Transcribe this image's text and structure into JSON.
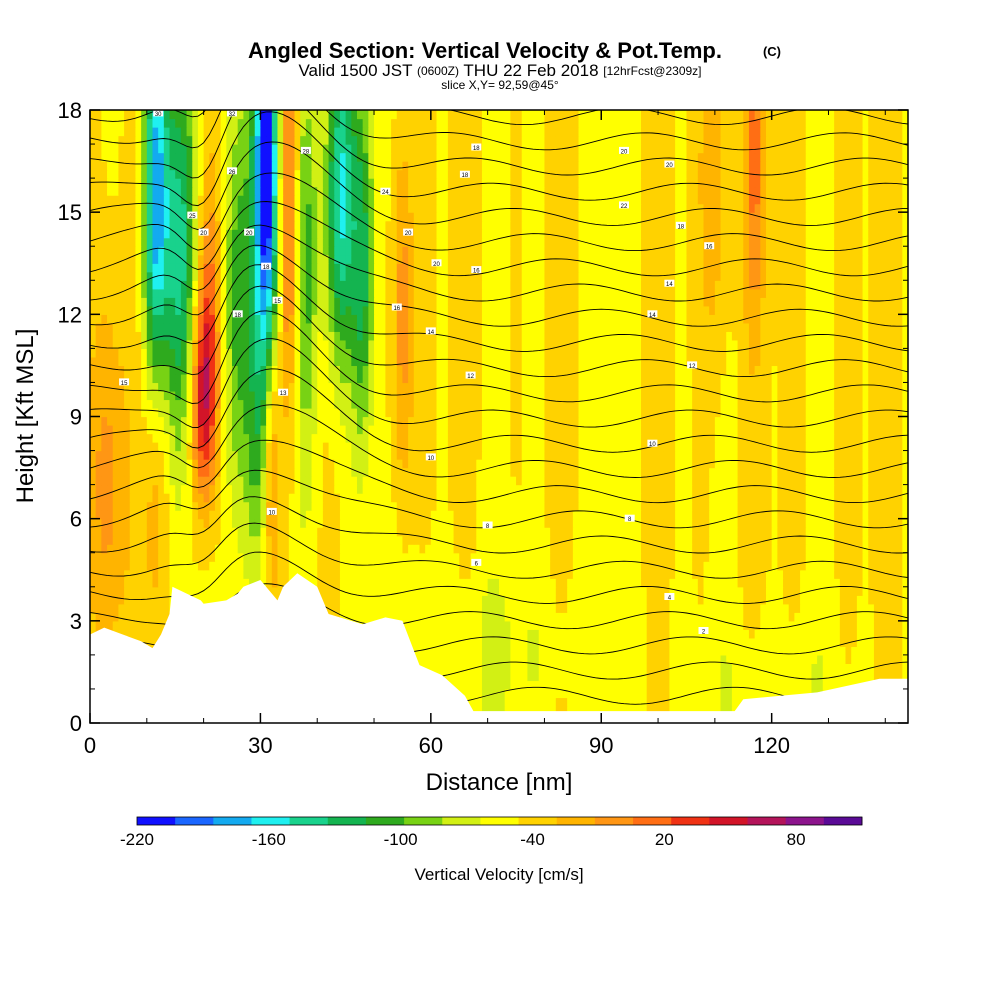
{
  "header": {
    "title_main": "Angled Section: Vertical Velocity & Pot.Temp.",
    "title_unit": "(C)",
    "valid_a": "Valid 1500 JST",
    "valid_utc": "(0600Z)",
    "valid_b": "THU 22 Feb 2018",
    "fcst": "[12hrFcst@2309z]",
    "slice": "slice X,Y= 92,59@45°"
  },
  "chart_data": {
    "type": "heatmap",
    "xlabel": "Distance [nm]",
    "ylabel": "Height [Kft MSL]",
    "xlim": [
      0,
      144
    ],
    "ylim": [
      0,
      18
    ],
    "x_ticks": [
      "0",
      "30",
      "60",
      "90",
      "120"
    ],
    "x_tick_values": [
      0,
      30,
      60,
      90,
      120
    ],
    "y_ticks": [
      "0",
      "3",
      "6",
      "9",
      "12",
      "15",
      "18"
    ],
    "y_tick_values": [
      0,
      3,
      6,
      9,
      12,
      15,
      18
    ],
    "grid": false,
    "colorbar": {
      "label": "Vertical Velocity [cm/s]",
      "range": [
        -220,
        110
      ],
      "step": 20,
      "tick_labels": [
        "-220",
        "-160",
        "-100",
        "-40",
        "20",
        "80"
      ],
      "tick_values": [
        -220,
        -160,
        -100,
        -40,
        20,
        80
      ],
      "colors": [
        "#1010ff",
        "#1a66ff",
        "#13aaf0",
        "#1ff0f0",
        "#19d28c",
        "#14b450",
        "#2eaa1e",
        "#78d214",
        "#d2f014",
        "#ffff00",
        "#ffd200",
        "#ffb400",
        "#ff9614",
        "#ff6e14",
        "#f03214",
        "#d21428",
        "#b4145a",
        "#8c148c",
        "#5a0a96"
      ]
    },
    "velocity_background_cm_s": -20,
    "velocity_features": [
      {
        "x": 3,
        "y": 7,
        "sx": 2.5,
        "sy": 4,
        "w": 50
      },
      {
        "x": 12,
        "y": 7,
        "sx": 1.5,
        "sy": 3,
        "w": 40
      },
      {
        "x": 11.5,
        "y": 15.5,
        "sx": 1.6,
        "sy": 4,
        "w": -150
      },
      {
        "x": 16,
        "y": 13.8,
        "sx": 2.0,
        "sy": 4.2,
        "w": -110
      },
      {
        "x": 20,
        "y": 9.5,
        "sx": 1.7,
        "sy": 2.2,
        "w": 120
      },
      {
        "x": 21,
        "y": 13.5,
        "sx": 1.4,
        "sy": 3,
        "w": 60
      },
      {
        "x": 26,
        "y": 12.5,
        "sx": 1.8,
        "sy": 5,
        "w": -80
      },
      {
        "x": 31,
        "y": 16,
        "sx": 1.6,
        "sy": 4.5,
        "w": -210
      },
      {
        "x": 29,
        "y": 8,
        "sx": 1.2,
        "sy": 3,
        "w": -40
      },
      {
        "x": 32,
        "y": 8,
        "sx": 0.9,
        "sy": 3,
        "w": 60
      },
      {
        "x": 35,
        "y": 15,
        "sx": 1.2,
        "sy": 4,
        "w": 90
      },
      {
        "x": 38,
        "y": 13.5,
        "sx": 1.5,
        "sy": 4,
        "w": -60
      },
      {
        "x": 44,
        "y": 15.5,
        "sx": 1.8,
        "sy": 3.5,
        "w": -130
      },
      {
        "x": 48,
        "y": 13.5,
        "sx": 1.5,
        "sy": 4,
        "w": -90
      },
      {
        "x": 55,
        "y": 12,
        "sx": 1.3,
        "sy": 4,
        "w": 60
      },
      {
        "x": 110,
        "y": 16,
        "sx": 2,
        "sy": 4,
        "w": 40
      },
      {
        "x": 117,
        "y": 16.5,
        "sx": 1.3,
        "sy": 3.5,
        "w": 60
      },
      {
        "x": 70,
        "y": 2,
        "sx": 15,
        "sy": 2,
        "w": -20
      },
      {
        "x": 120,
        "y": 1,
        "sx": 10,
        "sy": 1.5,
        "w": -15
      }
    ],
    "terrain_profile": [
      [
        0,
        2.6
      ],
      [
        2.5,
        2.8
      ],
      [
        9,
        2.4
      ],
      [
        11,
        2.2
      ],
      [
        12.5,
        2.6
      ],
      [
        14,
        3.2
      ],
      [
        14.5,
        4.0
      ],
      [
        19.5,
        3.6
      ],
      [
        20,
        3.5
      ],
      [
        24,
        3.6
      ],
      [
        26,
        3.8
      ],
      [
        27,
        4.0
      ],
      [
        30,
        4.2
      ],
      [
        33,
        3.6
      ],
      [
        34,
        4.0
      ],
      [
        36.5,
        4.4
      ],
      [
        40,
        4.0
      ],
      [
        42,
        3.2
      ],
      [
        48,
        2.9
      ],
      [
        52,
        3.1
      ],
      [
        55,
        3.0
      ],
      [
        58,
        1.7
      ],
      [
        62,
        1.4
      ],
      [
        66,
        0.8
      ],
      [
        67.5,
        0.35
      ],
      [
        113.5,
        0.35
      ],
      [
        115,
        0.7
      ],
      [
        128,
        0.9
      ],
      [
        139,
        1.3
      ],
      [
        144,
        1.3
      ]
    ],
    "isotherm_labels": [
      {
        "x": 12,
        "y": 17.9,
        "text": "30"
      },
      {
        "x": 25,
        "y": 17.9,
        "text": "32"
      },
      {
        "x": 18,
        "y": 14.9,
        "text": "25"
      },
      {
        "x": 25,
        "y": 16.2,
        "text": "26"
      },
      {
        "x": 28,
        "y": 14.4,
        "text": "20"
      },
      {
        "x": 20,
        "y": 14.4,
        "text": "20"
      },
      {
        "x": 38,
        "y": 16.8,
        "text": "28"
      },
      {
        "x": 52,
        "y": 15.6,
        "text": "24"
      },
      {
        "x": 31,
        "y": 13.4,
        "text": "18"
      },
      {
        "x": 33,
        "y": 12.4,
        "text": "15"
      },
      {
        "x": 26,
        "y": 12.0,
        "text": "18"
      },
      {
        "x": 6,
        "y": 10.0,
        "text": "15"
      },
      {
        "x": 34,
        "y": 9.7,
        "text": "13"
      },
      {
        "x": 32,
        "y": 6.2,
        "text": "10"
      },
      {
        "x": 68,
        "y": 16.9,
        "text": "18"
      },
      {
        "x": 66,
        "y": 16.1,
        "text": "18"
      },
      {
        "x": 56,
        "y": 14.4,
        "text": "20"
      },
      {
        "x": 61,
        "y": 13.5,
        "text": "20"
      },
      {
        "x": 68,
        "y": 13.3,
        "text": "16"
      },
      {
        "x": 54,
        "y": 12.2,
        "text": "16"
      },
      {
        "x": 60,
        "y": 11.5,
        "text": "14"
      },
      {
        "x": 67,
        "y": 10.2,
        "text": "12"
      },
      {
        "x": 60,
        "y": 7.8,
        "text": "10"
      },
      {
        "x": 70,
        "y": 5.8,
        "text": "8"
      },
      {
        "x": 68,
        "y": 4.7,
        "text": "6"
      },
      {
        "x": 94,
        "y": 16.8,
        "text": "20"
      },
      {
        "x": 102,
        "y": 16.4,
        "text": "20"
      },
      {
        "x": 94,
        "y": 15.2,
        "text": "22"
      },
      {
        "x": 104,
        "y": 14.6,
        "text": "18"
      },
      {
        "x": 109,
        "y": 14.0,
        "text": "16"
      },
      {
        "x": 102,
        "y": 12.9,
        "text": "14"
      },
      {
        "x": 99,
        "y": 12.0,
        "text": "14"
      },
      {
        "x": 106,
        "y": 10.5,
        "text": "12"
      },
      {
        "x": 99,
        "y": 8.2,
        "text": "10"
      },
      {
        "x": 95,
        "y": 6.0,
        "text": "8"
      },
      {
        "x": 102,
        "y": 3.7,
        "text": "4"
      },
      {
        "x": 108,
        "y": 2.7,
        "text": "2"
      }
    ]
  }
}
